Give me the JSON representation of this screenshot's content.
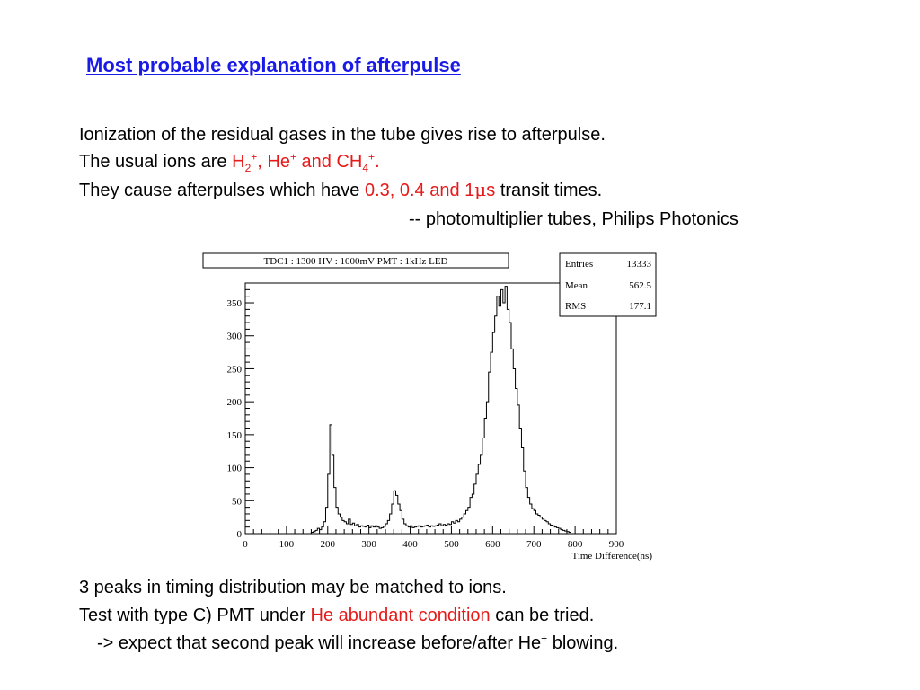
{
  "slide": {
    "title": "Most probable explanation of afterpulse",
    "line1": "Ionization of the residual gases in the tube gives rise to afterpulse.",
    "line2": {
      "prefix": "The usual ions are ",
      "ion1_base": "H",
      "ion1_sub": "2",
      "ion1_sup": "+",
      "sep1": ", ",
      "ion2_base": "He",
      "ion2_sup": "+",
      "and": " and ",
      "ion3_base": "CH",
      "ion3_sub": "4",
      "ion3_sup": "+",
      "end": "."
    },
    "line3": {
      "prefix": "They cause afterpulses which have ",
      "values": "0.3, 0.4 and 1",
      "unit_mu": "μ",
      "unit_s": "s",
      "suffix": " transit times."
    },
    "citation": "-- photomultiplier tubes, Philips Photonics",
    "bottom": {
      "line1": "3 peaks in timing distribution may be matched to ions.",
      "line2_prefix": "Test with type C) PMT under ",
      "line2_red": "He abundant condition",
      "line2_suffix": " can be tried.",
      "line3_prefix": "-> expect that second peak will increase before/after He",
      "line3_sup": "+",
      "line3_suffix": " blowing."
    }
  },
  "colors": {
    "title": "#1a1ae6",
    "highlight": "#e61a1a"
  },
  "chart_data": {
    "type": "histogram",
    "title": "TDC1 : 1300 HV : 1000mV PMT : 1kHz  LED",
    "xlabel": "Time Difference(ns)",
    "ylabel": "",
    "xlim": [
      0,
      900
    ],
    "ylim": [
      0,
      380
    ],
    "x_ticks": [
      "0",
      "100",
      "200",
      "300",
      "400",
      "500",
      "600",
      "700",
      "800",
      "900"
    ],
    "y_ticks": [
      "0",
      "50",
      "100",
      "150",
      "200",
      "250",
      "300",
      "350"
    ],
    "stats": {
      "entries_label": "Entries",
      "entries": "13333",
      "mean_label": "Mean",
      "mean": "562.5",
      "rms_label": "RMS",
      "rms": "177.1"
    },
    "bin_width": 5,
    "bins_start": 160,
    "values": [
      2,
      3,
      5,
      8,
      6,
      10,
      18,
      40,
      90,
      165,
      120,
      70,
      40,
      30,
      25,
      20,
      18,
      15,
      22,
      14,
      16,
      12,
      14,
      10,
      12,
      11,
      10,
      13,
      9,
      12,
      10,
      12,
      10,
      8,
      9,
      11,
      15,
      20,
      30,
      45,
      65,
      58,
      45,
      35,
      22,
      15,
      12,
      10,
      12,
      9,
      10,
      11,
      12,
      10,
      11,
      12,
      13,
      10,
      12,
      11,
      12,
      13,
      15,
      12,
      14,
      13,
      15,
      14,
      18,
      16,
      20,
      18,
      22,
      25,
      30,
      35,
      40,
      55,
      60,
      75,
      90,
      105,
      120,
      145,
      175,
      200,
      245,
      275,
      305,
      330,
      360,
      345,
      370,
      350,
      375,
      340,
      320,
      280,
      250,
      220,
      195,
      160,
      130,
      95,
      70,
      55,
      45,
      38,
      35,
      30,
      28,
      25,
      22,
      20,
      18,
      15,
      13,
      12,
      10,
      9,
      8,
      6,
      5,
      4,
      3,
      2
    ]
  }
}
